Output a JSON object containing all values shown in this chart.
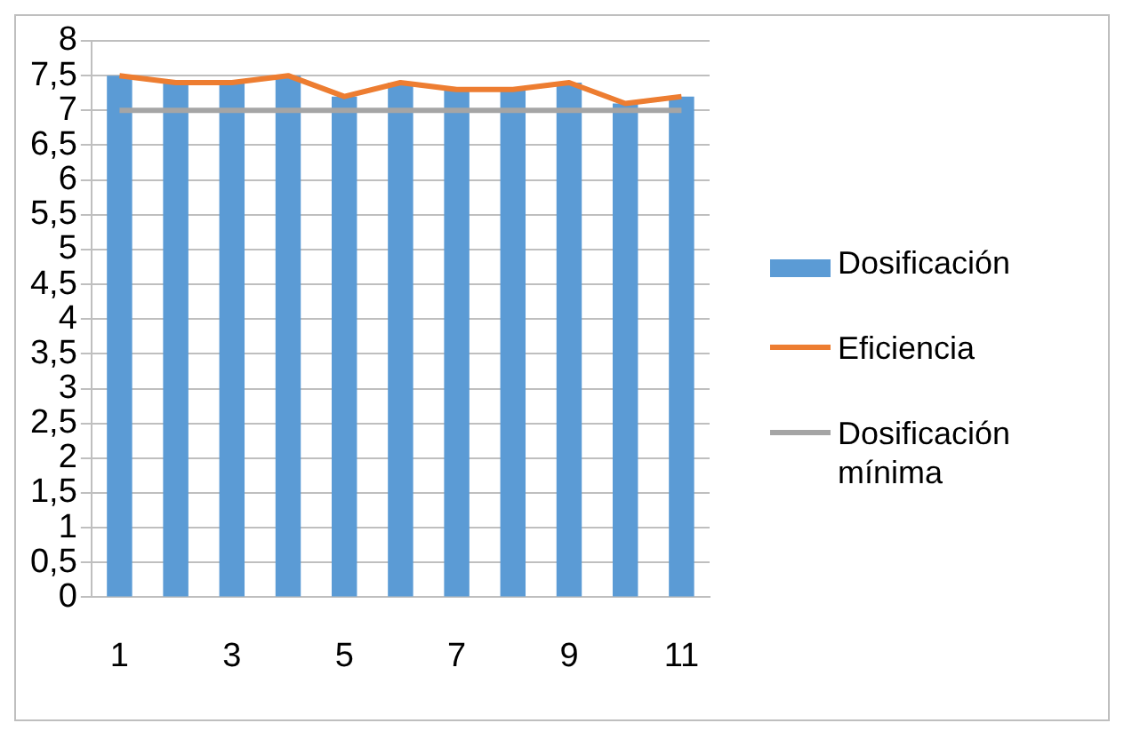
{
  "chart_data": {
    "type": "bar",
    "categories": [
      "1",
      null,
      "3",
      null,
      "5",
      null,
      "7",
      null,
      "9",
      null,
      "11"
    ],
    "series": [
      {
        "name": "Dosificación",
        "color": "#5b9bd5",
        "values": [
          7.5,
          7.4,
          7.4,
          7.5,
          7.2,
          7.4,
          7.3,
          7.3,
          7.4,
          7.1,
          7.2
        ]
      },
      {
        "name": "Eficiencia",
        "type": "line",
        "color": "#ed7d31",
        "values": [
          7.5,
          7.4,
          7.4,
          7.5,
          7.2,
          7.4,
          7.3,
          7.3,
          7.4,
          7.1,
          7.2
        ]
      },
      {
        "name": "Dosificación mínima",
        "type": "line",
        "color": "#a5a5a5",
        "values": [
          7,
          7,
          7,
          7,
          7,
          7,
          7,
          7,
          7,
          7,
          7
        ]
      }
    ],
    "ylim": [
      0,
      8
    ],
    "yticks": [
      0,
      {
        "value": 0.5,
        "label": "0,5"
      },
      1,
      {
        "value": 1.5,
        "label": "1,5"
      },
      2,
      {
        "value": 2.5,
        "label": "2,5"
      },
      3,
      {
        "value": 3.5,
        "label": "3,5"
      },
      4,
      {
        "value": 4.5,
        "label": "4,5"
      },
      5,
      {
        "value": 5.5,
        "label": "5,5"
      },
      6,
      {
        "value": 6.5,
        "label": "6,5"
      },
      7,
      {
        "value": 7.5,
        "label": "7,5"
      },
      8
    ],
    "grid": "y",
    "legend": "right",
    "marker": "none",
    "line_style": "solid"
  }
}
